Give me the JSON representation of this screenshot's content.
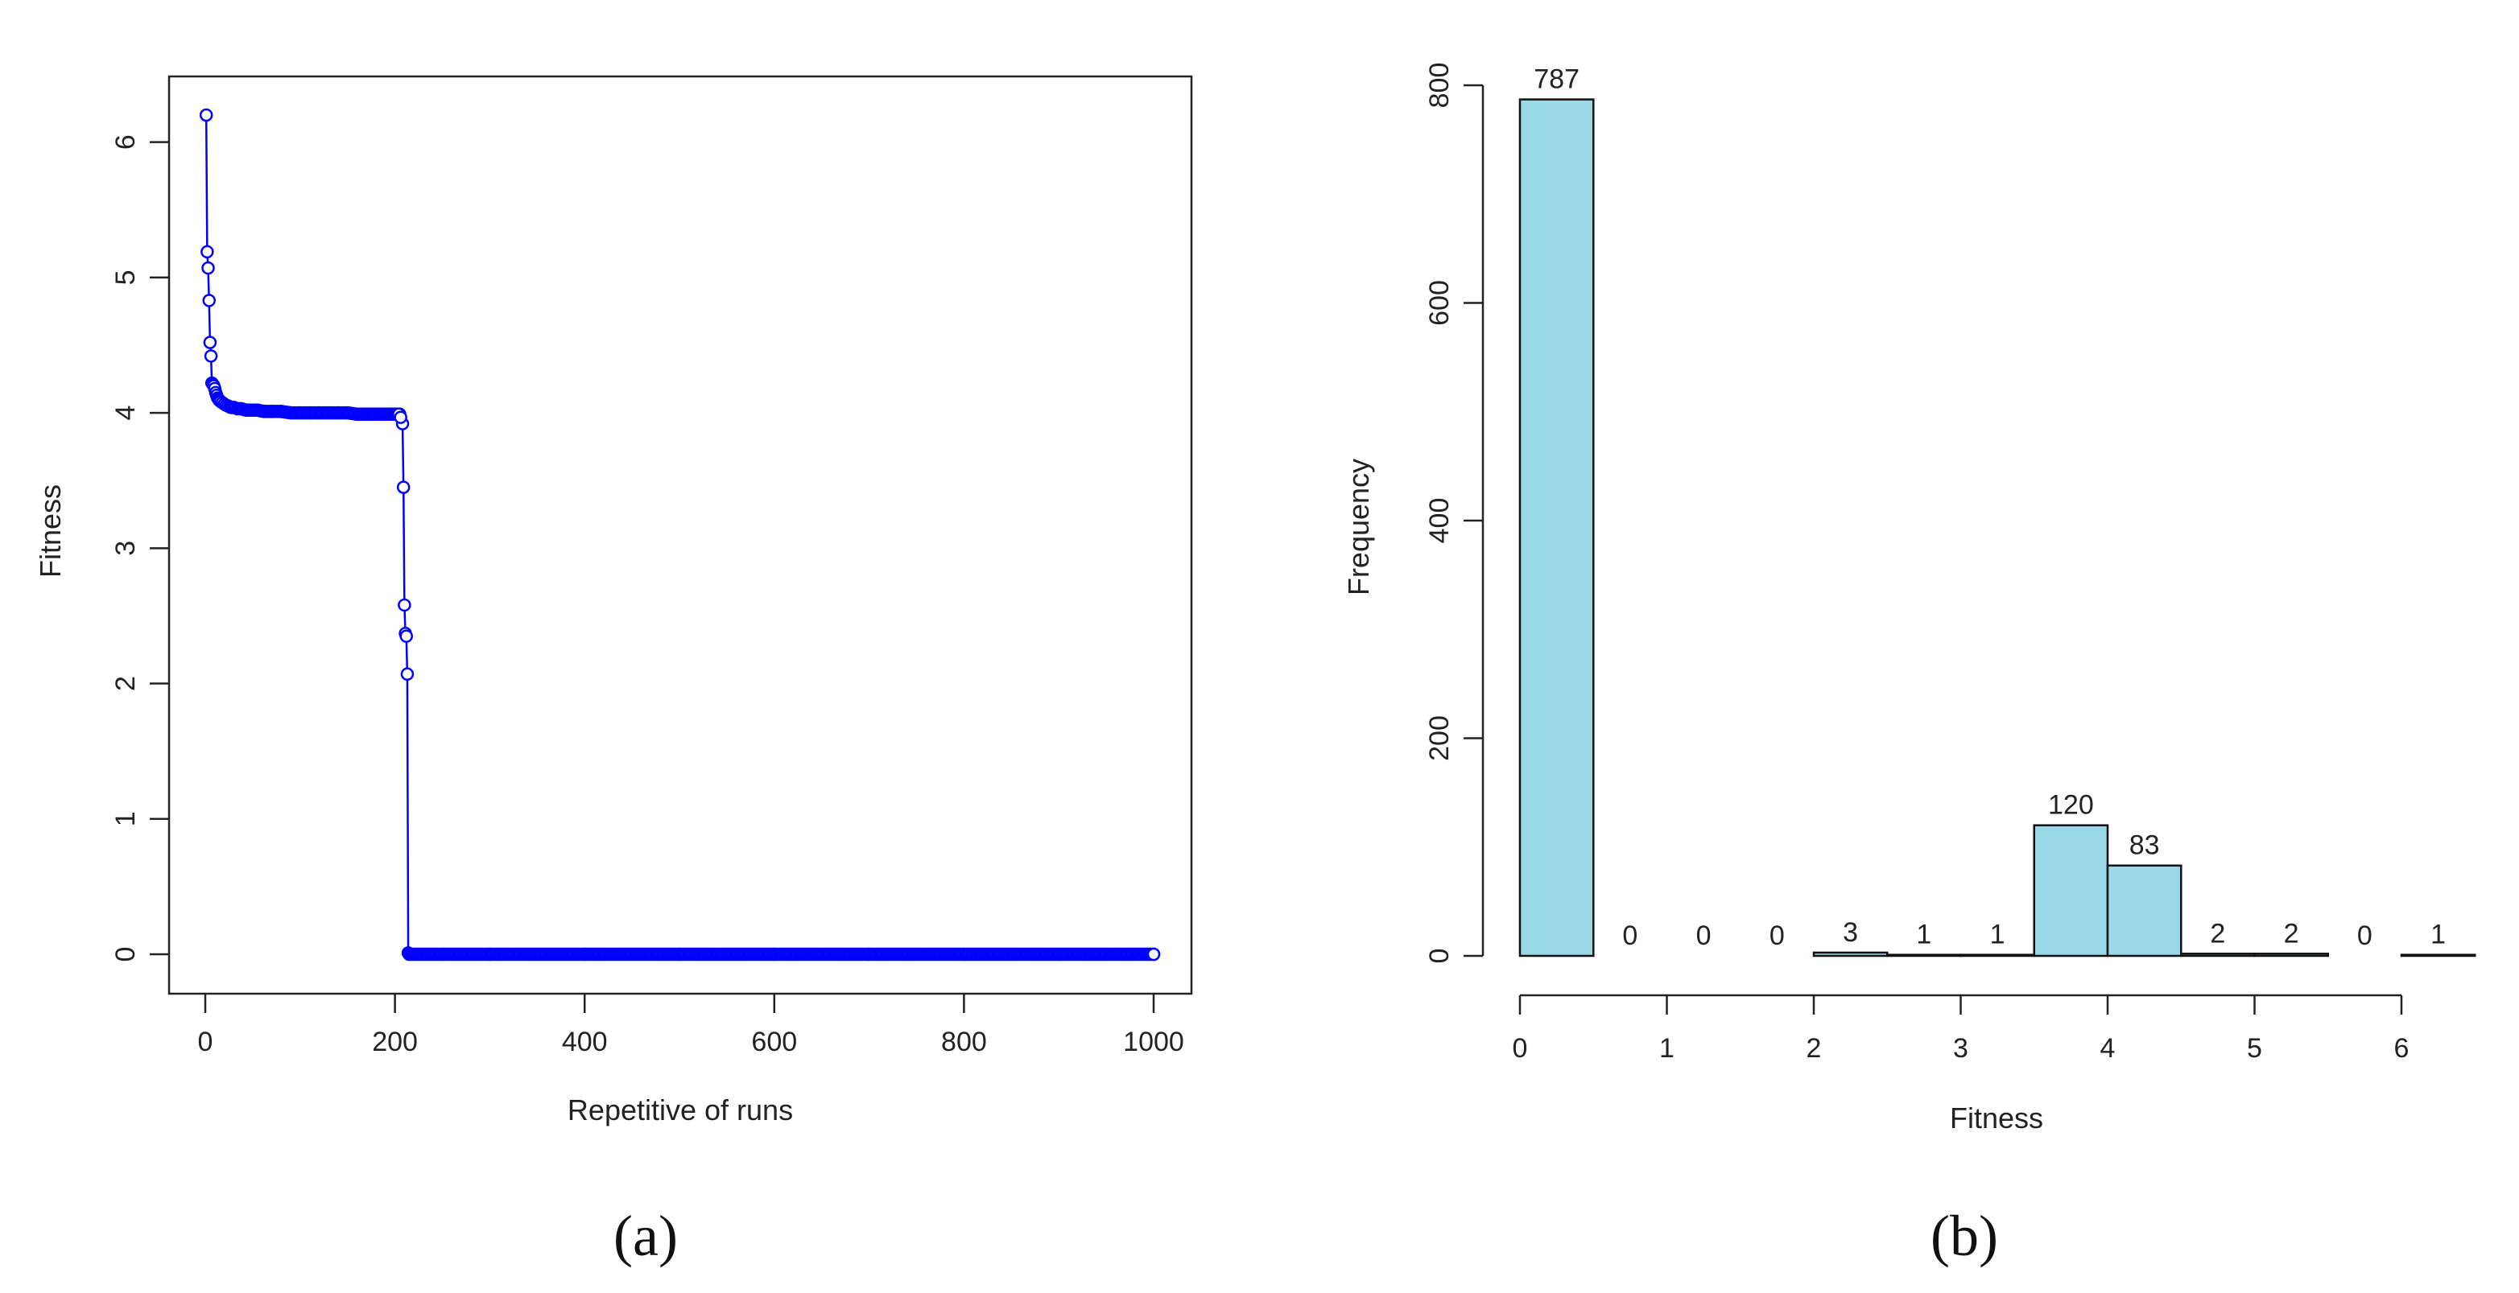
{
  "chart_data": [
    {
      "type": "line",
      "panel": "(a)",
      "title": "",
      "xlabel": "Repetitive of runs",
      "ylabel": "Fitness",
      "xlim": [
        0,
        1000
      ],
      "ylim": [
        0,
        6.2
      ],
      "xticks": [
        0,
        200,
        400,
        600,
        800,
        1000
      ],
      "yticks": [
        0,
        1,
        2,
        3,
        4,
        5,
        6
      ],
      "grid": false,
      "marker": "open-circle",
      "color": "#0000ff",
      "series": [
        {
          "x": [
            1,
            2,
            3,
            4,
            5,
            6,
            7,
            8,
            9,
            10,
            11,
            12,
            13,
            14,
            15,
            17,
            19,
            21,
            24,
            27,
            30,
            34,
            38,
            43,
            48,
            55,
            62,
            70,
            80,
            90,
            100,
            110,
            120,
            130,
            140,
            150,
            160,
            170,
            180,
            190,
            200,
            205,
            208,
            209,
            210,
            211,
            212,
            213,
            214,
            215,
            250,
            300,
            400,
            500,
            600,
            700,
            800,
            900,
            1000
          ],
          "y": [
            6.2,
            5.19,
            5.07,
            4.83,
            4.52,
            4.42,
            4.22,
            4.21,
            4.2,
            4.18,
            4.15,
            4.13,
            4.11,
            4.1,
            4.09,
            4.08,
            4.07,
            4.06,
            4.05,
            4.04,
            4.04,
            4.03,
            4.03,
            4.02,
            4.02,
            4.02,
            4.01,
            4.01,
            4.01,
            4.0,
            4.0,
            4.0,
            4.0,
            4.0,
            4.0,
            4.0,
            3.99,
            3.99,
            3.99,
            3.99,
            3.99,
            3.99,
            3.92,
            3.45,
            2.58,
            2.37,
            2.35,
            2.07,
            0.01,
            0.0,
            0.0,
            0.0,
            0.0,
            0.0,
            0.0,
            0.0,
            0.0,
            0.0,
            0.0
          ]
        }
      ]
    },
    {
      "type": "bar",
      "panel": "(b)",
      "title": "",
      "xlabel": "Fitness",
      "ylabel": "Frequency",
      "xlim": [
        0,
        6.5
      ],
      "ylim": [
        0,
        800
      ],
      "xticks": [
        0,
        1,
        2,
        3,
        4,
        5,
        6
      ],
      "yticks": [
        0,
        200,
        400,
        600,
        800
      ],
      "grid": false,
      "color": "#99d8e6",
      "bin_edges": [
        0,
        0.5,
        1,
        1.5,
        2,
        2.5,
        3,
        3.5,
        4,
        4.5,
        5,
        5.5,
        6,
        6.5
      ],
      "values": [
        787,
        0,
        0,
        0,
        3,
        1,
        1,
        120,
        83,
        2,
        2,
        0,
        1
      ],
      "labels": [
        "787",
        "0",
        "0",
        "0",
        "3",
        "1",
        "1",
        "120",
        "83",
        "2",
        "2",
        "0",
        "1"
      ]
    }
  ]
}
